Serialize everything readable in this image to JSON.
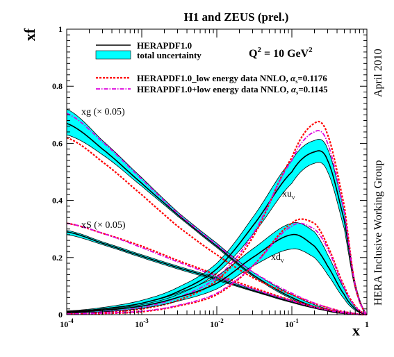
{
  "chart_data": {
    "type": "line",
    "title": "H1 and ZEUS (prel.)",
    "xlabel": "x",
    "ylabel": "xf",
    "xscale": "log",
    "xlim": [
      0.0001,
      1
    ],
    "ylim": [
      0,
      1
    ],
    "x_ticks": [
      {
        "v": 0.0001,
        "base": "10",
        "exp": "-4"
      },
      {
        "v": 0.001,
        "base": "10",
        "exp": "-3"
      },
      {
        "v": 0.01,
        "base": "10",
        "exp": "-2"
      },
      {
        "v": 0.1,
        "base": "10",
        "exp": "-1"
      },
      {
        "v": 1,
        "base": "1",
        "exp": ""
      }
    ],
    "y_ticks": [
      "0",
      "0.2",
      "0.4",
      "0.6",
      "0.8",
      "1"
    ],
    "q2_label": {
      "prefix": "Q",
      "sup": "2",
      "mid": " = 10 GeV",
      "sup2": "2"
    },
    "side_text_top": "April 2010",
    "side_text_bottom": "HERA Inclusive Working Group",
    "legend": {
      "placement": "top",
      "central": "HERAPDF1.0",
      "band": "total uncertainty",
      "red_main": "HERAPDF1.0_low energy data NNLO, ",
      "red_alpha": "=0.1176",
      "magenta_main": "HERAPDF1.0+low energy data NNLO, ",
      "magenta_alpha": "=0.1145",
      "alpha_symbol": "α",
      "alpha_sub": "s"
    },
    "labels": {
      "xg": "xg (× 0.05)",
      "xS": "xS (× 0.05)",
      "xuv": "xu",
      "xdv": "xd",
      "v_sub": "v"
    },
    "colors": {
      "band": "#00ffff",
      "central": "#000000",
      "red": "#ff0000",
      "magenta": "#dd00dd"
    },
    "series": [
      {
        "key": "xg",
        "x": [
          0.0001,
          0.0003,
          0.001,
          0.003,
          0.01,
          0.03,
          0.1,
          0.3,
          0.7,
          1
        ],
        "central": [
          0.67,
          0.58,
          0.46,
          0.35,
          0.24,
          0.14,
          0.06,
          0.015,
          0.002,
          0.0
        ],
        "lower": [
          0.63,
          0.56,
          0.45,
          0.345,
          0.235,
          0.135,
          0.055,
          0.012,
          0.001,
          0.0
        ],
        "upper": [
          0.72,
          0.61,
          0.48,
          0.36,
          0.25,
          0.15,
          0.07,
          0.02,
          0.003,
          0.0
        ],
        "red": [
          0.62,
          0.535,
          0.42,
          0.31,
          0.21,
          0.13,
          0.07,
          0.025,
          0.004,
          0.0
        ],
        "magenta": [
          0.705,
          0.605,
          0.475,
          0.355,
          0.245,
          0.15,
          0.075,
          0.025,
          0.004,
          0.0
        ]
      },
      {
        "key": "xS",
        "x": [
          0.0001,
          0.0003,
          0.001,
          0.003,
          0.01,
          0.03,
          0.1,
          0.3,
          0.7,
          1
        ],
        "central": [
          0.29,
          0.25,
          0.205,
          0.165,
          0.125,
          0.085,
          0.045,
          0.015,
          0.002,
          0.0
        ],
        "lower": [
          0.28,
          0.245,
          0.2,
          0.16,
          0.12,
          0.082,
          0.042,
          0.013,
          0.001,
          0.0
        ],
        "upper": [
          0.295,
          0.255,
          0.21,
          0.17,
          0.13,
          0.09,
          0.05,
          0.018,
          0.003,
          0.0
        ],
        "red": [
          0.32,
          0.285,
          0.24,
          0.19,
          0.14,
          0.095,
          0.05,
          0.018,
          0.002,
          0.0
        ],
        "magenta": [
          0.32,
          0.285,
          0.235,
          0.185,
          0.135,
          0.09,
          0.048,
          0.016,
          0.002,
          0.0
        ]
      },
      {
        "key": "xuv",
        "x": [
          0.0001,
          0.0003,
          0.001,
          0.003,
          0.01,
          0.03,
          0.1,
          0.2,
          0.3,
          0.5,
          0.7,
          1
        ],
        "central": [
          0.01,
          0.02,
          0.04,
          0.08,
          0.16,
          0.31,
          0.5,
          0.57,
          0.54,
          0.33,
          0.1,
          0.0
        ],
        "lower": [
          0.008,
          0.017,
          0.035,
          0.07,
          0.145,
          0.28,
          0.46,
          0.53,
          0.5,
          0.3,
          0.09,
          0.0
        ],
        "upper": [
          0.013,
          0.025,
          0.05,
          0.095,
          0.18,
          0.34,
          0.54,
          0.61,
          0.58,
          0.36,
          0.11,
          0.0
        ],
        "red": [
          0.003,
          0.008,
          0.02,
          0.05,
          0.12,
          0.27,
          0.55,
          0.67,
          0.63,
          0.38,
          0.1,
          0.0
        ],
        "magenta": [
          0.004,
          0.01,
          0.025,
          0.06,
          0.13,
          0.28,
          0.54,
          0.64,
          0.6,
          0.36,
          0.1,
          0.0
        ]
      },
      {
        "key": "xdv",
        "x": [
          0.0001,
          0.0003,
          0.001,
          0.003,
          0.01,
          0.03,
          0.1,
          0.2,
          0.3,
          0.5,
          0.7,
          1
        ],
        "central": [
          0.008,
          0.015,
          0.03,
          0.06,
          0.11,
          0.2,
          0.28,
          0.24,
          0.17,
          0.07,
          0.02,
          0.0
        ],
        "lower": [
          0.005,
          0.01,
          0.022,
          0.047,
          0.09,
          0.17,
          0.23,
          0.2,
          0.14,
          0.055,
          0.015,
          0.0
        ],
        "upper": [
          0.012,
          0.021,
          0.04,
          0.075,
          0.135,
          0.23,
          0.32,
          0.29,
          0.21,
          0.09,
          0.026,
          0.0
        ],
        "red": [
          0.002,
          0.004,
          0.01,
          0.03,
          0.07,
          0.17,
          0.32,
          0.32,
          0.24,
          0.1,
          0.03,
          0.0
        ],
        "magenta": [
          0.002,
          0.005,
          0.012,
          0.032,
          0.075,
          0.17,
          0.31,
          0.3,
          0.23,
          0.095,
          0.028,
          0.0
        ]
      }
    ]
  }
}
